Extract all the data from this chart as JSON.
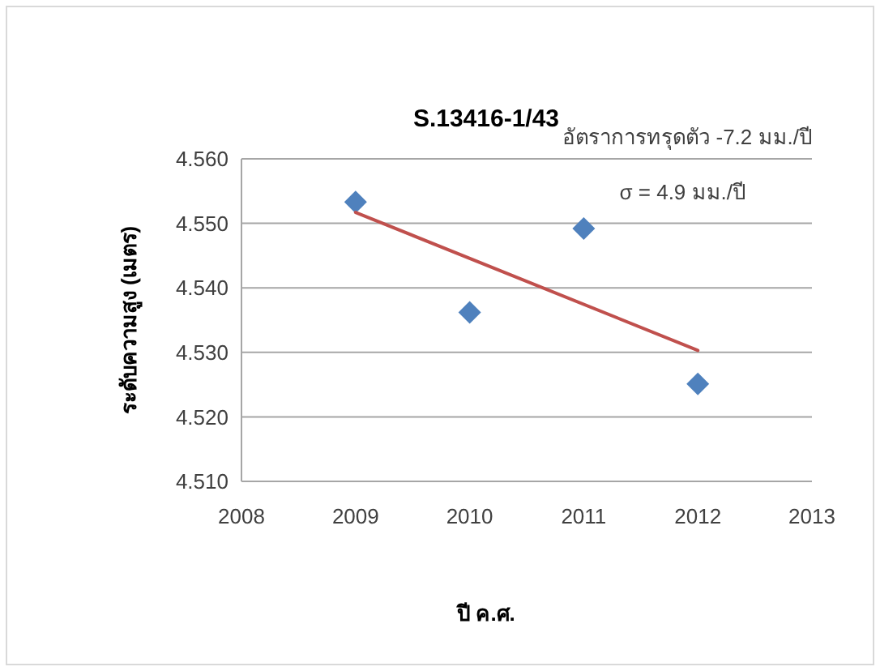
{
  "chart_data": {
    "type": "scatter",
    "title": "S.13416-1/43",
    "xlabel": "ปี ค.ศ.",
    "ylabel": "ระดับความสูง (เมตร)",
    "annotations": [
      "อัตราการทรุดตัว -7.2 มม./ปี",
      "σ = 4.9 มม./ปี"
    ],
    "x": [
      2009,
      2010,
      2011,
      2012
    ],
    "series": [
      {
        "type": "scatter",
        "color": "#4f81bd",
        "marker": "diamond",
        "values": [
          4.5533,
          4.5362,
          4.5492,
          4.5251
        ]
      },
      {
        "type": "line",
        "color": "#c0504d",
        "marker": "none",
        "x": [
          2009,
          2012
        ],
        "values": [
          4.5517,
          4.5303
        ]
      }
    ],
    "xlim": [
      2008,
      2013
    ],
    "xticks": [
      2008,
      2009,
      2010,
      2011,
      2012,
      2013
    ],
    "ylim": [
      4.51,
      4.56
    ],
    "yticks": [
      {
        "value": 4.51,
        "label": "4.510"
      },
      {
        "value": 4.52,
        "label": "4.520"
      },
      {
        "value": 4.53,
        "label": "4.530"
      },
      {
        "value": 4.54,
        "label": "4.540"
      },
      {
        "value": 4.55,
        "label": "4.550"
      },
      {
        "value": 4.56,
        "label": "4.560"
      }
    ],
    "grid": "y"
  }
}
